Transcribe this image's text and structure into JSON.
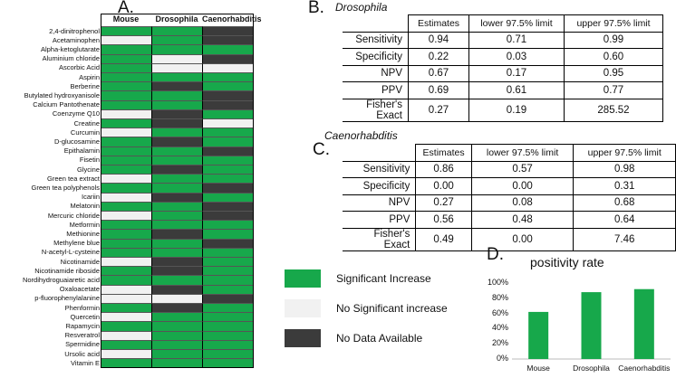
{
  "panel_a": {
    "letter": "A.",
    "columns": [
      "Mouse",
      "Drosophila",
      "Caenorhabditis"
    ],
    "rows": [
      {
        "name": "2,4-dinitrophenol",
        "cells": [
          "sig",
          "sig",
          "nodata"
        ]
      },
      {
        "name": "Acetaminophen",
        "cells": [
          "none",
          "sig",
          "nodata"
        ]
      },
      {
        "name": "Alpha-ketoglutarate",
        "cells": [
          "sig",
          "sig",
          "sig"
        ]
      },
      {
        "name": "Aluminium chloride",
        "cells": [
          "sig",
          "none",
          "nodata"
        ]
      },
      {
        "name": "Ascorbic Acid",
        "cells": [
          "sig",
          "none",
          "none"
        ]
      },
      {
        "name": "Aspirin",
        "cells": [
          "sig",
          "sig",
          "sig"
        ]
      },
      {
        "name": "Berberine",
        "cells": [
          "sig",
          "nodata",
          "sig"
        ]
      },
      {
        "name": "Butylated hydroxyanisole",
        "cells": [
          "sig",
          "sig",
          "nodata"
        ]
      },
      {
        "name": "Calcium Pantothenate",
        "cells": [
          "sig",
          "sig",
          "nodata"
        ]
      },
      {
        "name": "Coenzyme Q10",
        "cells": [
          "none",
          "nodata",
          "sig"
        ]
      },
      {
        "name": "Creatine",
        "cells": [
          "sig",
          "nodata",
          "none"
        ]
      },
      {
        "name": "Curcumin",
        "cells": [
          "none",
          "sig",
          "sig"
        ]
      },
      {
        "name": "D-glucosamine",
        "cells": [
          "sig",
          "nodata",
          "sig"
        ]
      },
      {
        "name": "Epithalamin",
        "cells": [
          "sig",
          "sig",
          "nodata"
        ]
      },
      {
        "name": "Fisetin",
        "cells": [
          "sig",
          "sig",
          "sig"
        ]
      },
      {
        "name": "Glycine",
        "cells": [
          "sig",
          "nodata",
          "sig"
        ]
      },
      {
        "name": "Green tea extract",
        "cells": [
          "none",
          "sig",
          "sig"
        ]
      },
      {
        "name": "Green tea polyphenols",
        "cells": [
          "sig",
          "sig",
          "nodata"
        ]
      },
      {
        "name": "Icariin",
        "cells": [
          "none",
          "nodata",
          "sig"
        ]
      },
      {
        "name": "Melatonin",
        "cells": [
          "sig",
          "sig",
          "nodata"
        ]
      },
      {
        "name": "Mercuric chloride",
        "cells": [
          "none",
          "sig",
          "nodata"
        ]
      },
      {
        "name": "Metformin",
        "cells": [
          "sig",
          "sig",
          "sig"
        ]
      },
      {
        "name": "Methionine",
        "cells": [
          "sig",
          "nodata",
          "sig"
        ]
      },
      {
        "name": "Methylene blue",
        "cells": [
          "sig",
          "sig",
          "nodata"
        ]
      },
      {
        "name": "N-acetyl-L-cysteine",
        "cells": [
          "sig",
          "sig",
          "sig"
        ]
      },
      {
        "name": "Nicotinamide",
        "cells": [
          "none",
          "nodata",
          "sig"
        ]
      },
      {
        "name": "Nicotinamide riboside",
        "cells": [
          "sig",
          "nodata",
          "sig"
        ]
      },
      {
        "name": "Nordihydroguaiaretic acid",
        "cells": [
          "sig",
          "sig",
          "sig"
        ]
      },
      {
        "name": "Oxaloacetate",
        "cells": [
          "none",
          "nodata",
          "sig"
        ]
      },
      {
        "name": "p-fluorophenylalanine",
        "cells": [
          "none",
          "none",
          "nodata"
        ]
      },
      {
        "name": "Phenformin",
        "cells": [
          "sig",
          "nodata",
          "sig"
        ]
      },
      {
        "name": "Quercetin",
        "cells": [
          "none",
          "sig",
          "sig"
        ]
      },
      {
        "name": "Rapamycin",
        "cells": [
          "sig",
          "sig",
          "sig"
        ]
      },
      {
        "name": "Resveratrol",
        "cells": [
          "none",
          "sig",
          "sig"
        ]
      },
      {
        "name": "Spermidine",
        "cells": [
          "sig",
          "sig",
          "sig"
        ]
      },
      {
        "name": "Ursolic acid",
        "cells": [
          "none",
          "sig",
          "sig"
        ]
      },
      {
        "name": "Vitamin E",
        "cells": [
          "sig",
          "sig",
          "sig"
        ]
      }
    ]
  },
  "colors": {
    "sig": "#17a84b",
    "none": "#f1f1f1",
    "nodata": "#3b3b3b"
  },
  "panel_b": {
    "letter": "B.",
    "title": "Drosophila",
    "headers": [
      "Estimates",
      "lower 97.5% limit",
      "upper 97.5% limit"
    ],
    "rows": [
      {
        "label": "Sensitivity",
        "values": [
          "0.94",
          "0.71",
          "0.99"
        ]
      },
      {
        "label": "Specificity",
        "values": [
          "0.22",
          "0.03",
          "0.60"
        ]
      },
      {
        "label": "NPV",
        "values": [
          "0.67",
          "0.17",
          "0.95"
        ]
      },
      {
        "label": "PPV",
        "values": [
          "0.69",
          "0.61",
          "0.77"
        ]
      },
      {
        "label": "Fisher's Exact",
        "values": [
          "0.27",
          "0.19",
          "285.52"
        ]
      }
    ]
  },
  "panel_c": {
    "letter": "C.",
    "title": "Caenorhabditis",
    "headers": [
      "Estimates",
      "lower 97.5% limit",
      "upper 97.5% limit"
    ],
    "rows": [
      {
        "label": "Sensitivity",
        "values": [
          "0.86",
          "0.57",
          "0.98"
        ]
      },
      {
        "label": "Specificity",
        "values": [
          "0.00",
          "0.00",
          "0.31"
        ]
      },
      {
        "label": "NPV",
        "values": [
          "0.27",
          "0.08",
          "0.68"
        ]
      },
      {
        "label": "PPV",
        "values": [
          "0.56",
          "0.48",
          "0.64"
        ]
      },
      {
        "label": "Fisher's Exact",
        "values": [
          "0.49",
          "0.00",
          "7.46"
        ]
      }
    ]
  },
  "legend": {
    "sig": "Significant Increase",
    "none": "No Significant increase",
    "nodata": "No Data Available"
  },
  "panel_d": {
    "letter": "D."
  },
  "chart_data": {
    "type": "bar",
    "title": "positivity rate",
    "categories": [
      "Mouse",
      "Drosophila",
      "Caenorhabditis"
    ],
    "values": [
      62,
      88,
      92
    ],
    "ylim": [
      0,
      100
    ],
    "yticks": [
      "0%",
      "20%",
      "40%",
      "60%",
      "80%",
      "100%"
    ],
    "bar_color": "#17a84b",
    "xlabel": "",
    "ylabel": ""
  }
}
